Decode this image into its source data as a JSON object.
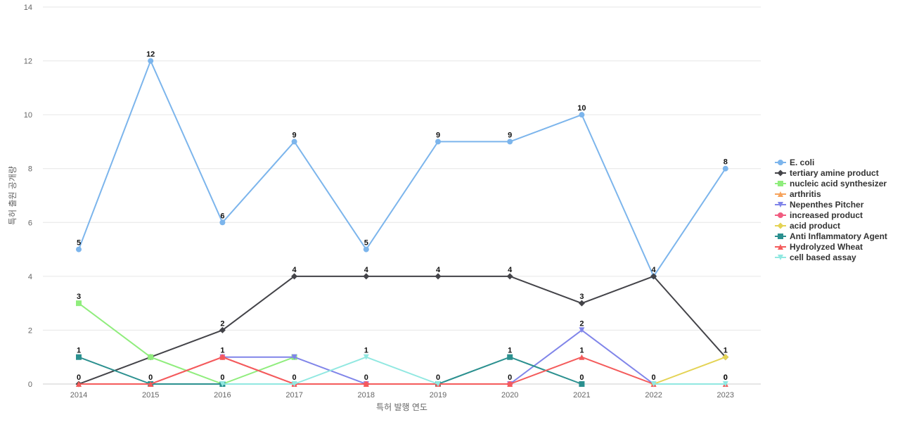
{
  "chart_data": {
    "type": "line",
    "title": "",
    "xlabel": "특허 발행 연도",
    "ylabel": "특허 출원 공개량",
    "categories": [
      "2014",
      "2015",
      "2016",
      "2017",
      "2018",
      "2019",
      "2020",
      "2021",
      "2022",
      "2023"
    ],
    "ylim": [
      0,
      14
    ],
    "yticks": [
      0,
      2,
      4,
      6,
      8,
      10,
      12,
      14
    ],
    "grid": true,
    "legend_position": "right",
    "series": [
      {
        "name": "E. coli",
        "color": "#7cb5ec",
        "marker": "circle",
        "values": [
          5,
          12,
          6,
          9,
          5,
          9,
          9,
          10,
          4,
          8
        ],
        "labels": [
          true,
          true,
          true,
          true,
          true,
          true,
          true,
          true,
          false,
          true
        ]
      },
      {
        "name": "tertiary amine product",
        "color": "#434348",
        "marker": "diamond",
        "values": [
          0,
          1,
          2,
          4,
          4,
          4,
          4,
          3,
          4,
          1
        ],
        "labels": [
          false,
          false,
          true,
          true,
          true,
          true,
          true,
          true,
          true,
          true
        ]
      },
      {
        "name": "nucleic acid synthesizer",
        "color": "#90ed7d",
        "marker": "square",
        "values": [
          3,
          1,
          0,
          1,
          null,
          null,
          null,
          null,
          null,
          null
        ],
        "labels": [
          true,
          false,
          false,
          false,
          false,
          false,
          false,
          false,
          false,
          false
        ]
      },
      {
        "name": "arthritis",
        "color": "#f7a35c",
        "marker": "triangle",
        "values": [
          0,
          0,
          null,
          null,
          null,
          null,
          null,
          null,
          null,
          null
        ],
        "labels": [
          false,
          false,
          false,
          false,
          false,
          false,
          false,
          false,
          false,
          false
        ]
      },
      {
        "name": "Nepenthes Pitcher",
        "color": "#8085e9",
        "marker": "triangle-down",
        "values": [
          null,
          null,
          1,
          1,
          0,
          null,
          0,
          2,
          0,
          null
        ],
        "labels": [
          false,
          false,
          false,
          false,
          false,
          false,
          false,
          true,
          false,
          false
        ]
      },
      {
        "name": "increased product",
        "color": "#f15c80",
        "marker": "circle",
        "values": [
          null,
          0,
          1,
          0,
          0,
          0,
          0,
          null,
          null,
          null
        ],
        "labels": [
          false,
          false,
          false,
          false,
          false,
          false,
          false,
          false,
          false,
          false
        ]
      },
      {
        "name": "acid product",
        "color": "#e4d354",
        "marker": "diamond",
        "values": [
          null,
          null,
          null,
          null,
          null,
          null,
          null,
          null,
          0,
          1
        ],
        "labels": [
          false,
          false,
          false,
          false,
          false,
          false,
          false,
          false,
          false,
          false
        ]
      },
      {
        "name": "Anti Inflammatory Agent",
        "color": "#2b908f",
        "marker": "square",
        "values": [
          1,
          0,
          0,
          null,
          null,
          0,
          1,
          0,
          null,
          null
        ],
        "labels": [
          true,
          true,
          true,
          false,
          false,
          false,
          true,
          true,
          false,
          false
        ]
      },
      {
        "name": "Hydrolyzed Wheat",
        "color": "#f45b5b",
        "marker": "triangle",
        "values": [
          0,
          0,
          1,
          0,
          0,
          0,
          0,
          1,
          0,
          0
        ],
        "labels": [
          true,
          false,
          true,
          true,
          true,
          true,
          true,
          true,
          true,
          true
        ]
      },
      {
        "name": "cell based assay",
        "color": "#91e8e1",
        "marker": "triangle-down",
        "values": [
          null,
          null,
          0,
          0,
          1,
          0,
          null,
          null,
          0,
          0
        ],
        "labels": [
          false,
          false,
          false,
          false,
          true,
          false,
          false,
          false,
          false,
          true
        ]
      }
    ]
  }
}
